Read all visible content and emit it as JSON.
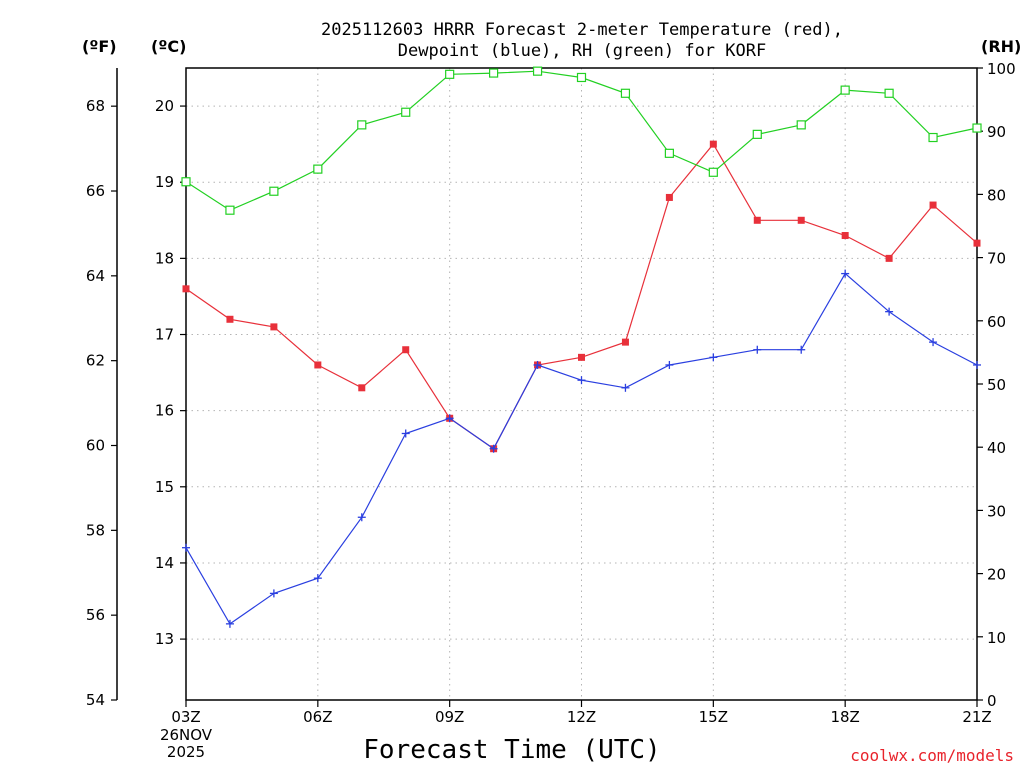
{
  "chart_data": {
    "type": "line",
    "title_line1": "2025112603 HRRR Forecast 2-meter Temperature (red),",
    "title_line2": "Dewpoint (blue), RH (green) for KORF",
    "xlabel": "Forecast Time (UTC)",
    "date_label_line1": "26NOV",
    "date_label_line2": "2025",
    "credit": "coolwx.com/models",
    "credit_color": "#e8232b",
    "unit_f": "(ºF)",
    "unit_c": "(ºC)",
    "unit_rh": "(RH)",
    "x_tick_labels": [
      "03Z",
      "06Z",
      "09Z",
      "12Z",
      "15Z",
      "18Z",
      "21Z"
    ],
    "x_tick_hours": [
      3,
      6,
      9,
      12,
      15,
      18,
      21
    ],
    "x_hours": [
      3,
      4,
      5,
      6,
      7,
      8,
      9,
      10,
      11,
      12,
      13,
      14,
      15,
      16,
      17,
      18,
      19,
      20,
      21
    ],
    "xlim": [
      3,
      21
    ],
    "ylim_c": [
      12.2,
      20.5
    ],
    "y_ticks_c": [
      13,
      14,
      15,
      16,
      17,
      18,
      19,
      20
    ],
    "ylim_f": [
      54,
      68.9
    ],
    "y_ticks_f": [
      54,
      56,
      58,
      60,
      62,
      64,
      66,
      68
    ],
    "ylim_rh": [
      0,
      100
    ],
    "y_ticks_rh": [
      0,
      10,
      20,
      30,
      40,
      50,
      60,
      70,
      80,
      90,
      100
    ],
    "grid": true,
    "series": [
      {
        "name": "Temperature",
        "axis": "c",
        "color": "#e8303a",
        "marker": "filled-square",
        "values": [
          17.6,
          17.2,
          17.1,
          16.6,
          16.3,
          16.8,
          15.9,
          15.5,
          16.6,
          16.7,
          16.9,
          18.8,
          19.5,
          18.5,
          18.5,
          18.3,
          18.0,
          18.7,
          18.2
        ]
      },
      {
        "name": "Dewpoint",
        "axis": "c",
        "color": "#2a3fe0",
        "marker": "plus",
        "values": [
          14.2,
          13.2,
          13.6,
          13.8,
          14.6,
          15.7,
          15.9,
          15.5,
          16.6,
          16.4,
          16.3,
          16.6,
          16.7,
          16.8,
          16.8,
          17.8,
          17.3,
          16.9,
          16.6
        ]
      },
      {
        "name": "RH",
        "axis": "rh",
        "color": "#22d022",
        "marker": "open-square",
        "values": [
          82.0,
          77.5,
          80.5,
          84.0,
          91.0,
          93.0,
          99.0,
          99.2,
          99.5,
          98.5,
          96.0,
          86.5,
          83.5,
          89.5,
          91.0,
          96.5,
          96.0,
          89.0,
          90.5
        ]
      }
    ]
  }
}
